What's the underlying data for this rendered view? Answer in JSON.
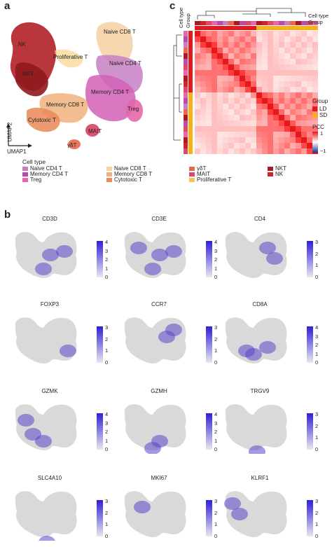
{
  "panels": {
    "a": "a",
    "b": "b",
    "c": "c"
  },
  "panel_a": {
    "clusters": [
      {
        "label": "Naive CD8 T"
      },
      {
        "label": "NK"
      },
      {
        "label": "Proliferative T"
      },
      {
        "label": "Naive CD4 T"
      },
      {
        "label": "NKT"
      },
      {
        "label": "Memory CD4 T"
      },
      {
        "label": "Memory CD8 T"
      },
      {
        "label": "Treg"
      },
      {
        "label": "Cytotoxic T"
      },
      {
        "label": "MAIT"
      },
      {
        "label": "γδT"
      }
    ],
    "axis_x": "UMAP1",
    "axis_y": "UMAP2",
    "legend_title": "Cell type",
    "legend": [
      {
        "label": "Naive CD4 T",
        "color": "#c77fc4"
      },
      {
        "label": "Memory CD4 T",
        "color": "#b64cb0"
      },
      {
        "label": "Treg",
        "color": "#e667a7"
      },
      {
        "label": "Naive CD8 T",
        "color": "#f5d3a7"
      },
      {
        "label": "Memory CD8 T",
        "color": "#f0b27d"
      },
      {
        "label": "Cytotoxic T",
        "color": "#e98a58"
      },
      {
        "label": "γδT",
        "color": "#e7684c"
      },
      {
        "label": "MAIT",
        "color": "#d94b6b"
      },
      {
        "label": "Proliferative T",
        "color": "#f6c15a"
      },
      {
        "label": "NKT",
        "color": "#a71b22"
      },
      {
        "label": "NK",
        "color": "#c8262b"
      }
    ]
  },
  "panel_c": {
    "row_labels": [
      "Cell type",
      "Group"
    ],
    "col_labels": [
      "Cell type",
      "Group"
    ],
    "group_legend_title": "Group",
    "group_legend": [
      {
        "label": "LD",
        "color": "#e3191c"
      },
      {
        "label": "SD",
        "color": "#f9b016"
      }
    ],
    "pcc_title": "PCC",
    "pcc_max": "1",
    "pcc_min": "−1"
  },
  "panel_b": {
    "genes": [
      {
        "name": "CD3D",
        "ticks": [
          "4",
          "3",
          "2",
          "1",
          "0"
        ]
      },
      {
        "name": "CD3E",
        "ticks": [
          "4",
          "3",
          "2",
          "1",
          "0"
        ]
      },
      {
        "name": "CD4",
        "ticks": [
          "3",
          "2",
          "1",
          "0"
        ]
      },
      {
        "name": "FOXP3",
        "ticks": [
          "3",
          "2",
          "1",
          "0"
        ]
      },
      {
        "name": "CCR7",
        "ticks": [
          "3",
          "2",
          "1",
          "0"
        ]
      },
      {
        "name": "CD8A",
        "ticks": [
          "4",
          "3",
          "2",
          "1",
          "0"
        ]
      },
      {
        "name": "GZMK",
        "ticks": [
          "4",
          "3",
          "2",
          "1",
          "0"
        ]
      },
      {
        "name": "GZMH",
        "ticks": [
          "4",
          "3",
          "2",
          "1",
          "0"
        ]
      },
      {
        "name": "TRGV9",
        "ticks": [
          "3",
          "2",
          "1",
          "0"
        ]
      },
      {
        "name": "SLC4A10",
        "ticks": [
          "3",
          "2",
          "1",
          "0"
        ]
      },
      {
        "name": "MKI67",
        "ticks": [
          "3",
          "2",
          "1",
          "0"
        ]
      },
      {
        "name": "KLRF1",
        "ticks": [
          "3",
          "2",
          "1",
          "0"
        ]
      }
    ]
  }
}
